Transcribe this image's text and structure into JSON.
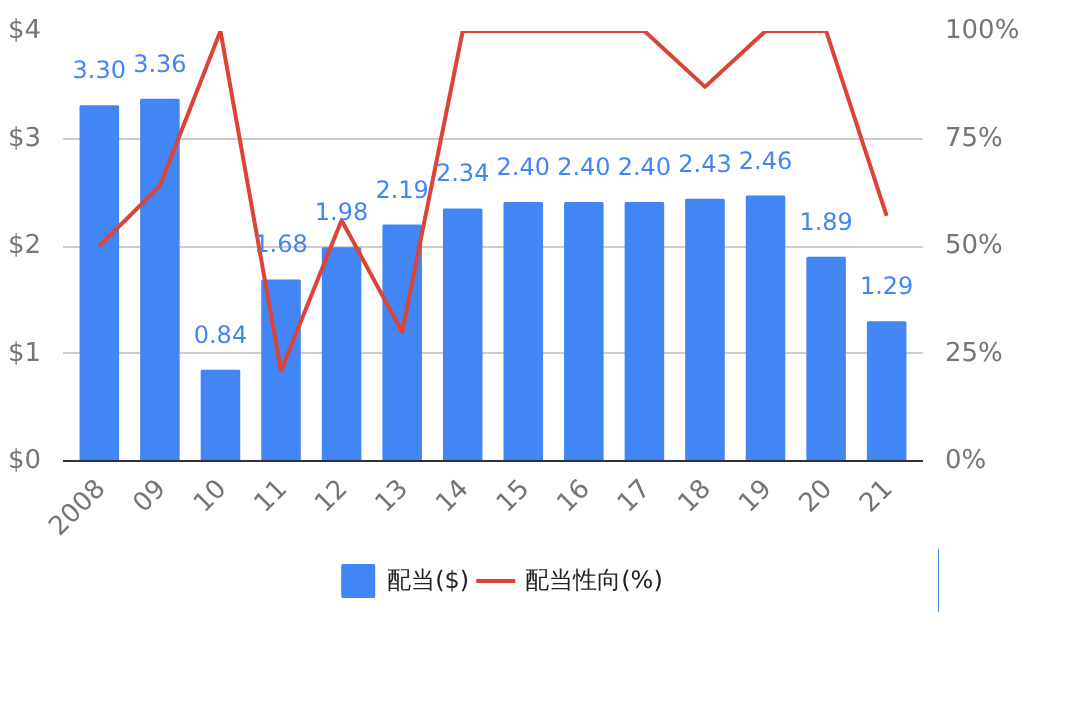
{
  "chart_data": {
    "type": "bar",
    "categories": [
      "2008",
      "09",
      "10",
      "11",
      "12",
      "13",
      "14",
      "15",
      "16",
      "17",
      "18",
      "19",
      "20",
      "21"
    ],
    "series": [
      {
        "name": "配当($)",
        "color": "#4285f4",
        "values": [
          3.3,
          3.36,
          0.84,
          1.68,
          1.98,
          2.19,
          2.34,
          2.4,
          2.4,
          2.4,
          2.43,
          2.46,
          1.89,
          1.29
        ],
        "value_labels": [
          "3.30",
          "3.36",
          "0.84",
          "1.68",
          "1.98",
          "2.19",
          "2.34",
          "2.40",
          "2.40",
          "2.40",
          "2.43",
          "2.46",
          "1.89",
          "1.29"
        ]
      },
      {
        "name": "配当性向(%)",
        "type": "line",
        "axis": "y2",
        "color": "#db4437",
        "values": [
          50,
          64,
          100,
          21,
          56,
          30,
          100,
          100,
          100,
          100,
          87,
          100,
          100,
          57
        ]
      }
    ],
    "ylim": [
      0,
      4
    ],
    "yticks": [
      {
        "value": 0,
        "label": "$0"
      },
      {
        "value": 1,
        "label": "$1"
      },
      {
        "value": 2,
        "label": "$2"
      },
      {
        "value": 3,
        "label": "$3"
      },
      {
        "value": 4,
        "label": "$4"
      }
    ],
    "y2lim": [
      0,
      100
    ],
    "y2ticks": [
      {
        "value": 0,
        "label": "0%"
      },
      {
        "value": 25,
        "label": "25%"
      },
      {
        "value": 50,
        "label": "50%"
      },
      {
        "value": 75,
        "label": "75%"
      },
      {
        "value": 100,
        "label": "100%"
      }
    ],
    "grid": "y",
    "legend": "bottom",
    "marker": "none",
    "line_style": "solid"
  }
}
